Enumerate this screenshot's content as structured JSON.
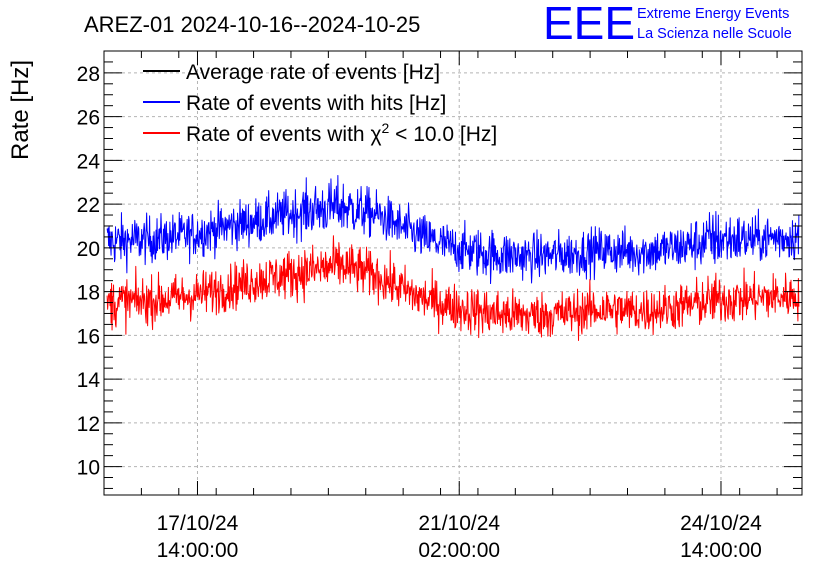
{
  "chart_data": {
    "type": "line",
    "title": "AREZ-01 2024-10-16--2024-10-25",
    "ylabel": "Rate [Hz]",
    "xlabel": "",
    "ylim": [
      8.7,
      29.0
    ],
    "y_ticks": [
      "10",
      "12",
      "14",
      "16",
      "18",
      "20",
      "22",
      "24",
      "26",
      "28"
    ],
    "x_ticks": [
      {
        "date": "17/10/24",
        "time": "14:00:00"
      },
      {
        "date": "21/10/24",
        "time": "02:00:00"
      },
      {
        "date": "24/10/24",
        "time": "14:00:00"
      }
    ],
    "x_range": [
      "2024-10-16 08:00",
      "2024-10-25 16:00"
    ],
    "grid": true,
    "legend_position": "top-left",
    "series": [
      {
        "name": "Average rate of events [Hz]",
        "color": "#000000",
        "x": [],
        "values": []
      },
      {
        "name": "Rate of events with hits [Hz]",
        "color": "#0000ff",
        "x": [
          "2024-10-16 12:00",
          "2024-10-17 00:00",
          "2024-10-17 12:00",
          "2024-10-18 00:00",
          "2024-10-18 12:00",
          "2024-10-19 00:00",
          "2024-10-19 12:00",
          "2024-10-20 00:00",
          "2024-10-20 12:00",
          "2024-10-21 00:00",
          "2024-10-21 12:00",
          "2024-10-22 00:00",
          "2024-10-22 12:00",
          "2024-10-23 00:00",
          "2024-10-23 12:00",
          "2024-10-24 00:00",
          "2024-10-24 12:00",
          "2024-10-25 00:00",
          "2024-10-25 12:00"
        ],
        "values": [
          20.3,
          20.4,
          20.6,
          21.0,
          21.3,
          21.7,
          21.9,
          21.5,
          20.6,
          20.0,
          19.7,
          19.6,
          19.7,
          19.9,
          19.8,
          20.0,
          20.4,
          20.4,
          20.5
        ],
        "spread": [
          1.1,
          1.0,
          1.0,
          1.0,
          1.0,
          1.1,
          1.2,
          1.0,
          1.0,
          1.0,
          1.1,
          1.0,
          1.0,
          1.0,
          1.0,
          1.0,
          1.3,
          1.0,
          1.0
        ]
      },
      {
        "name": "Rate of events with χ² < 10.0 [Hz]",
        "color": "#ff0000",
        "x": [
          "2024-10-16 12:00",
          "2024-10-17 00:00",
          "2024-10-17 12:00",
          "2024-10-18 00:00",
          "2024-10-18 12:00",
          "2024-10-19 00:00",
          "2024-10-19 12:00",
          "2024-10-20 00:00",
          "2024-10-20 12:00",
          "2024-10-21 00:00",
          "2024-10-21 12:00",
          "2024-10-22 00:00",
          "2024-10-22 12:00",
          "2024-10-23 00:00",
          "2024-10-23 12:00",
          "2024-10-24 00:00",
          "2024-10-24 12:00",
          "2024-10-25 00:00",
          "2024-10-25 12:00"
        ],
        "values": [
          17.5,
          17.6,
          17.8,
          18.2,
          18.6,
          18.9,
          19.2,
          18.7,
          17.8,
          17.3,
          17.0,
          16.9,
          17.0,
          17.2,
          17.1,
          17.3,
          17.6,
          17.7,
          17.8
        ],
        "spread": [
          1.1,
          1.0,
          1.0,
          1.0,
          1.0,
          1.1,
          1.1,
          1.0,
          1.0,
          1.0,
          1.1,
          1.0,
          1.0,
          1.0,
          1.0,
          1.0,
          1.1,
          1.0,
          1.0
        ]
      }
    ]
  },
  "logo": {
    "mark": "EEE",
    "line1": "Extreme Energy Events",
    "line2": "La Scienza nelle Scuole",
    "color": "#0000ff"
  },
  "legend": {
    "item1": "Average rate of events [Hz]",
    "item2": "Rate of events with hits [Hz]",
    "item3_prefix": "Rate of events with ",
    "item3_chi": "χ",
    "item3_sup": "2",
    "item3_suffix": " < 10.0 [Hz]"
  }
}
